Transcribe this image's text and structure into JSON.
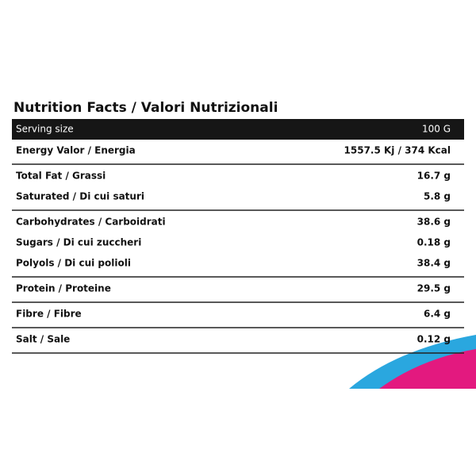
{
  "title": "Nutrition Facts / Valori Nutrizionali",
  "header": {
    "label": "Serving size",
    "value": "100 G"
  },
  "groups": [
    [
      {
        "label": "Energy Valor / Energia",
        "value": "1557.5 Kj / 374 Kcal"
      }
    ],
    [
      {
        "label": "Total Fat / Grassi",
        "value": "16.7 g"
      },
      {
        "label": "Saturated / Di cui saturi",
        "value": "5.8 g"
      }
    ],
    [
      {
        "label": "Carbohydrates / Carboidrati",
        "value": "38.6 g"
      },
      {
        "label": "Sugars / Di cui zuccheri",
        "value": "0.18 g"
      },
      {
        "label": "Polyols / Di cui polioli",
        "value": "38.4 g"
      }
    ],
    [
      {
        "label": "Protein / Proteine",
        "value": "29.5 g"
      }
    ],
    [
      {
        "label": "Fibre / Fibre",
        "value": "6.4 g"
      }
    ],
    [
      {
        "label": "Salt / Sale",
        "value": "0.12 g"
      }
    ]
  ]
}
